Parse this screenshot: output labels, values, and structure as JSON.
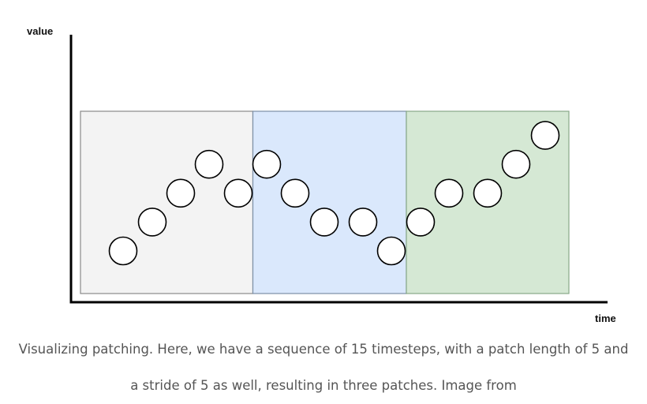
{
  "diagram": {
    "axes": {
      "y_label": "value",
      "x_label": "time",
      "color": "#000000"
    },
    "patches": [
      {
        "fill": "#f3f3f3",
        "stroke": "#8a8a8a"
      },
      {
        "fill": "#dae8fc",
        "stroke": "#7d8fa6"
      },
      {
        "fill": "#d5e8d4",
        "stroke": "#88a888"
      }
    ],
    "series": {
      "values": [
        1.0,
        2.0,
        3.0,
        4.0,
        3.0,
        4.0,
        3.0,
        2.0,
        2.0,
        1.0,
        2.0,
        3.0,
        3.0,
        4.0,
        5.0
      ],
      "marker_fill": "#ffffff",
      "marker_stroke": "#000000"
    }
  },
  "caption": {
    "line1": "Visualizing patching. Here, we have a sequence of 15 timesteps, with a patch length of 5 and",
    "line2": "a stride of 5 as well, resulting in three patches. Image from"
  }
}
